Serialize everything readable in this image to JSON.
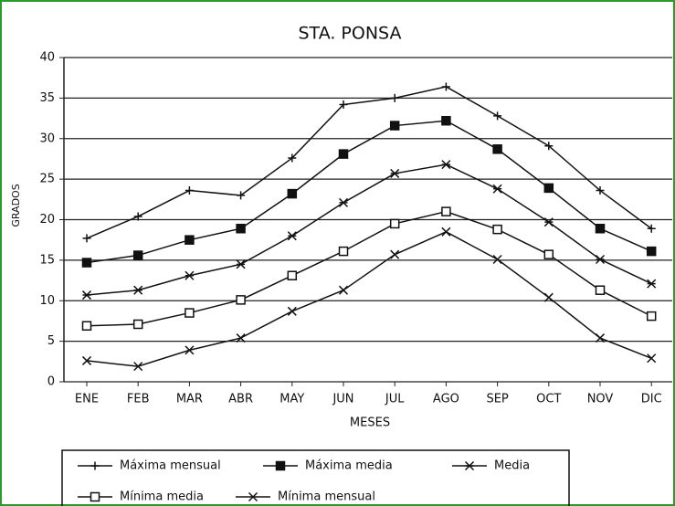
{
  "chart_data": {
    "type": "line",
    "title": "STA. PONSA",
    "y_label": "GRADOS",
    "x_label": "MESES",
    "categories": [
      "ENE",
      "FEB",
      "MAR",
      "ABR",
      "MAY",
      "JUN",
      "JUL",
      "AGO",
      "SEP",
      "OCT",
      "NOV",
      "DIC"
    ],
    "ylim": [
      0,
      40
    ],
    "yticks": [
      0,
      5,
      10,
      15,
      20,
      25,
      30,
      35,
      40
    ],
    "grid": true,
    "series": [
      {
        "name": "Máxima mensual",
        "color": "#111111",
        "marker": "plus",
        "values": [
          17.7,
          20.4,
          23.6,
          23,
          27.6,
          34.2,
          35,
          36.4,
          32.8,
          29.1,
          23.6,
          18.9
        ]
      },
      {
        "name": "Máxima media",
        "color": "#111111",
        "marker": "square-filled",
        "values": [
          14.7,
          15.6,
          17.5,
          18.9,
          23.2,
          28.1,
          31.6,
          32.2,
          28.7,
          23.9,
          18.9,
          16.1
        ]
      },
      {
        "name": "Media",
        "color": "#111111",
        "marker": "asterisk",
        "values": [
          10.7,
          11.3,
          13.1,
          14.5,
          18,
          22.1,
          25.7,
          26.8,
          23.8,
          19.7,
          15.1,
          12.1
        ]
      },
      {
        "name": "Mínima media",
        "color": "#111111",
        "marker": "square-open",
        "values": [
          6.9,
          7.1,
          8.5,
          10.1,
          13.1,
          16.1,
          19.5,
          21,
          18.8,
          15.7,
          11.3,
          8.1
        ]
      },
      {
        "name": "Mínima mensual",
        "color": "#111111",
        "marker": "cross",
        "values": [
          2.6,
          1.9,
          3.9,
          5.4,
          8.7,
          11.3,
          15.7,
          18.5,
          15.1,
          10.4,
          5.4,
          2.9
        ]
      }
    ]
  }
}
